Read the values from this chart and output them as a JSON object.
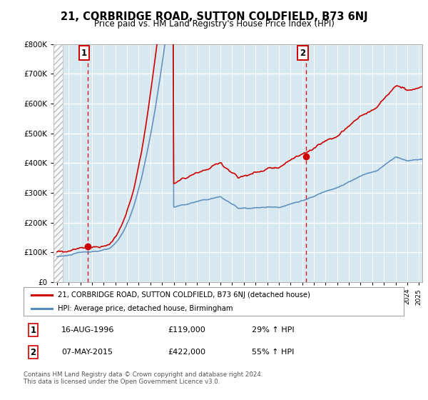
{
  "title": "21, CORBRIDGE ROAD, SUTTON COLDFIELD, B73 6NJ",
  "subtitle": "Price paid vs. HM Land Registry's House Price Index (HPI)",
  "legend_line1": "21, CORBRIDGE ROAD, SUTTON COLDFIELD, B73 6NJ (detached house)",
  "legend_line2": "HPI: Average price, detached house, Birmingham",
  "transaction1_date": "16-AUG-1996",
  "transaction1_price": 119000,
  "transaction1_label": "29% ↑ HPI",
  "transaction1_year": 1996.62,
  "transaction2_date": "07-MAY-2015",
  "transaction2_price": 422000,
  "transaction2_label": "55% ↑ HPI",
  "transaction2_year": 2015.35,
  "footer": "Contains HM Land Registry data © Crown copyright and database right 2024.\nThis data is licensed under the Open Government Licence v3.0.",
  "line_red_color": "#cc0000",
  "line_blue_color": "#5588bb",
  "background_color": "#ffffff",
  "plot_bg_color": "#d8e8f0",
  "grid_color": "#ffffff",
  "ylim": [
    0,
    800000
  ],
  "xlim_start": 1993.7,
  "xlim_end": 2025.3
}
